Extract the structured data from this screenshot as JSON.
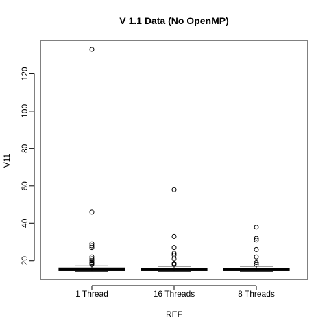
{
  "chart_data": {
    "type": "box",
    "title": "V 1.1 Data (No OpenMP)",
    "xlabel": "REF",
    "ylabel": "V11",
    "ylim": [
      9,
      138
    ],
    "yticks": [
      20,
      40,
      60,
      80,
      100,
      120
    ],
    "ytick_labels": [
      "20",
      "40",
      "60",
      "80",
      "100",
      "120"
    ],
    "categories": [
      "1 Thread",
      "16 Threads",
      "8 Threads"
    ],
    "grid": false,
    "legend": "none",
    "colors": {
      "box_fill": "#ff0000",
      "box_line": "#000000",
      "outlier": "#000000"
    },
    "boxes": [
      {
        "category": "1 Thread",
        "whisker_low": 14.3,
        "q1": 15.0,
        "median": 15.5,
        "q3": 16.1,
        "whisker_high": 17.2,
        "outliers": [
          133,
          46,
          29,
          28,
          27,
          22,
          21,
          20,
          19,
          18.5,
          18
        ]
      },
      {
        "category": "16 Threads",
        "whisker_low": 14.3,
        "q1": 15.0,
        "median": 15.5,
        "q3": 16.0,
        "whisker_high": 17.0,
        "outliers": [
          58,
          33,
          27,
          24,
          23,
          21,
          18.5,
          18
        ]
      },
      {
        "category": "8 Threads",
        "whisker_low": 14.3,
        "q1": 15.0,
        "median": 15.5,
        "q3": 16.0,
        "whisker_high": 17.0,
        "outliers": [
          38,
          32,
          31,
          26,
          22,
          19,
          18
        ]
      }
    ]
  }
}
